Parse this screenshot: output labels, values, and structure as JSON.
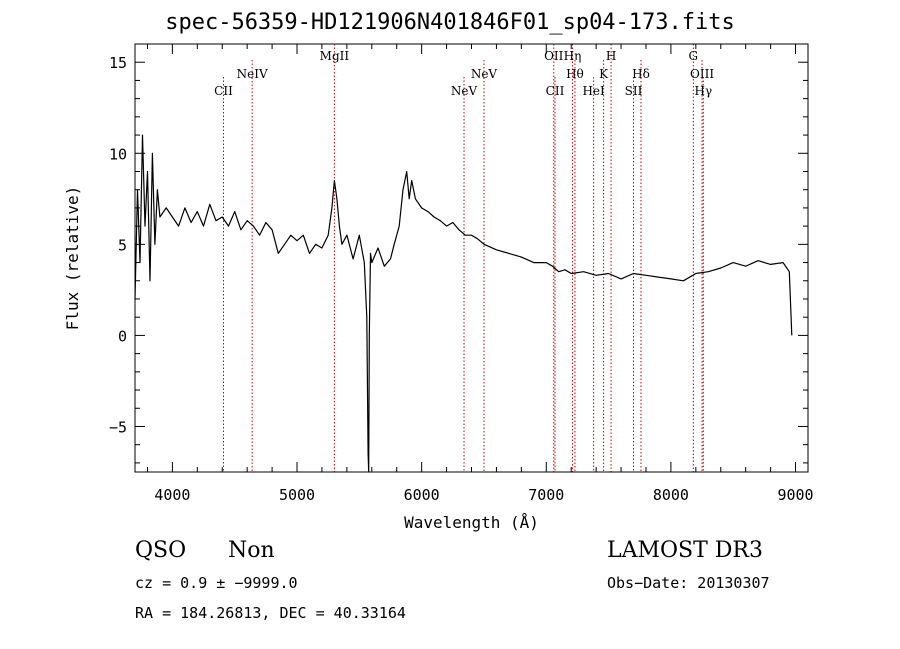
{
  "chart_data": {
    "type": "line",
    "title": "spec-56359-HD121906N401846F01_sp04-173.fits",
    "xlabel": "Wavelength (Å)",
    "ylabel": "Flux (relative)",
    "xlim": [
      3700,
      9100
    ],
    "ylim": [
      -7.5,
      16
    ],
    "xticks": [
      4000,
      5000,
      6000,
      7000,
      8000,
      9000
    ],
    "yticks": [
      -5,
      0,
      5,
      10,
      15
    ],
    "grid": false,
    "line_color": "#000000",
    "marker_color": "#cc0000",
    "series": [
      {
        "x": [
          3700,
          3720,
          3740,
          3760,
          3780,
          3800,
          3820,
          3840,
          3860,
          3880,
          3900,
          3950,
          4000,
          4050,
          4100,
          4150,
          4200,
          4250,
          4300,
          4350,
          4400,
          4450,
          4500,
          4550,
          4600,
          4650,
          4700,
          4750,
          4800,
          4850,
          4900,
          4950,
          5000,
          5050,
          5100,
          5150,
          5200,
          5250,
          5280,
          5300,
          5320,
          5340,
          5360,
          5400,
          5450,
          5500,
          5540,
          5560,
          5570,
          5575,
          5580,
          5590,
          5600,
          5650,
          5700,
          5750,
          5780,
          5820,
          5850,
          5880,
          5900,
          5920,
          5950,
          6000,
          6050,
          6100,
          6150,
          6200,
          6250,
          6300,
          6350,
          6400,
          6450,
          6500,
          6600,
          6700,
          6800,
          6900,
          7000,
          7050,
          7100,
          7150,
          7200,
          7300,
          7400,
          7500,
          7600,
          7700,
          7800,
          7900,
          8000,
          8100,
          8200,
          8300,
          8400,
          8500,
          8600,
          8700,
          8800,
          8900,
          8950,
          8970
        ],
        "y": [
          2.0,
          8.0,
          4.0,
          11.0,
          6.0,
          9.0,
          3.0,
          10.0,
          5.0,
          8.0,
          6.5,
          7.0,
          6.5,
          6.0,
          7.0,
          6.2,
          6.8,
          6.0,
          7.2,
          6.3,
          6.5,
          6.0,
          6.8,
          5.8,
          6.3,
          6.0,
          5.5,
          6.2,
          5.8,
          4.5,
          5.0,
          5.5,
          5.2,
          5.5,
          4.5,
          5.0,
          4.8,
          5.5,
          7.0,
          8.5,
          7.5,
          6.0,
          5.0,
          5.5,
          4.2,
          5.5,
          4.0,
          1.0,
          -6.5,
          -7.5,
          0.0,
          4.5,
          4.0,
          4.8,
          3.8,
          4.2,
          5.0,
          6.0,
          8.0,
          9.0,
          7.5,
          8.5,
          7.5,
          7.0,
          6.8,
          6.5,
          6.3,
          6.0,
          6.2,
          5.8,
          5.5,
          5.5,
          5.3,
          5.0,
          4.7,
          4.5,
          4.3,
          4.0,
          4.0,
          3.8,
          3.5,
          3.6,
          3.4,
          3.5,
          3.3,
          3.4,
          3.1,
          3.4,
          3.3,
          3.2,
          3.1,
          3.0,
          3.4,
          3.5,
          3.7,
          4.0,
          3.8,
          4.1,
          3.9,
          4.0,
          3.5,
          0.0
        ]
      }
    ],
    "lines_top": [
      {
        "label": "MgII",
        "x": 5300
      },
      {
        "label": "OII",
        "x": 7060
      },
      {
        "label": "Hη",
        "x": 7210
      },
      {
        "label": "H",
        "x": 7520
      },
      {
        "label": "G",
        "x": 8180
      }
    ],
    "lines_mid": [
      {
        "label": "NeIV",
        "x": 4640
      },
      {
        "label": "NeV",
        "x": 6500
      },
      {
        "label": "Hθ",
        "x": 7230
      },
      {
        "label": "K",
        "x": 7460
      },
      {
        "label": "Hδ",
        "x": 7760
      },
      {
        "label": "OIII",
        "x": 8250
      }
    ],
    "lines_low": [
      {
        "label": "CII",
        "x": 4410
      },
      {
        "label": "NeV",
        "x": 6340
      },
      {
        "label": "CII",
        "x": 7070
      },
      {
        "label": "HeI",
        "x": 7380
      },
      {
        "label": "SII",
        "x": 7700
      },
      {
        "label": "Hγ",
        "x": 8260
      }
    ]
  },
  "info": {
    "class": "QSO",
    "subclass": "Non",
    "survey": "LAMOST DR3",
    "cz": "cz = 0.9 ± −9999.0",
    "radec": "RA = 184.26813, DEC =  40.33164",
    "obs_date": "Obs−Date: 20130307"
  }
}
